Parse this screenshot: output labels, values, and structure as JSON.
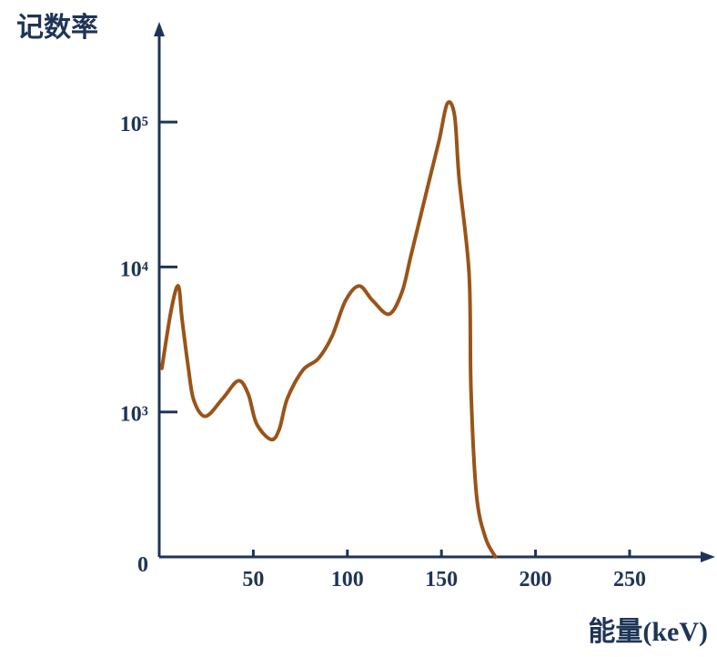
{
  "chart_data": {
    "type": "line",
    "y_label": "记数率",
    "x_label": "能量(keV)",
    "x": [
      1.4,
      6.3,
      10.1,
      12.1,
      15.5,
      18.4,
      24.6,
      33.8,
      42,
      47.3,
      51.7,
      59.4,
      63.8,
      68.1,
      76.3,
      84.5,
      91.8,
      99,
      106.3,
      113.5,
      122.2,
      129,
      133.8,
      142.5,
      148.8,
      153.1,
      157,
      159.4,
      164.7,
      165.7,
      168.6,
      173.4,
      178.7
    ],
    "values": [
      2000,
      5000,
      7400,
      4400,
      2000,
      1200,
      970,
      1240,
      1640,
      1330,
      920,
      810,
      880,
      1240,
      1940,
      2330,
      3320,
      5850,
      7400,
      5850,
      4730,
      6700,
      12000,
      34900,
      75000,
      134000,
      110000,
      40600,
      8900,
      1420,
      431,
      132,
      0
    ],
    "color": "#9a5418",
    "axis_color": "#1e3557",
    "xlim": [
      0,
      295
    ],
    "xticks": [
      50,
      100,
      150,
      200,
      250
    ],
    "ylim": [
      0,
      450000
    ],
    "yscale": "symlog",
    "yticks": [
      0,
      {
        "value": 1000,
        "label": "10³"
      },
      {
        "value": 10000,
        "label": "10⁴"
      },
      {
        "value": 100000,
        "label": "10⁵"
      }
    ]
  }
}
